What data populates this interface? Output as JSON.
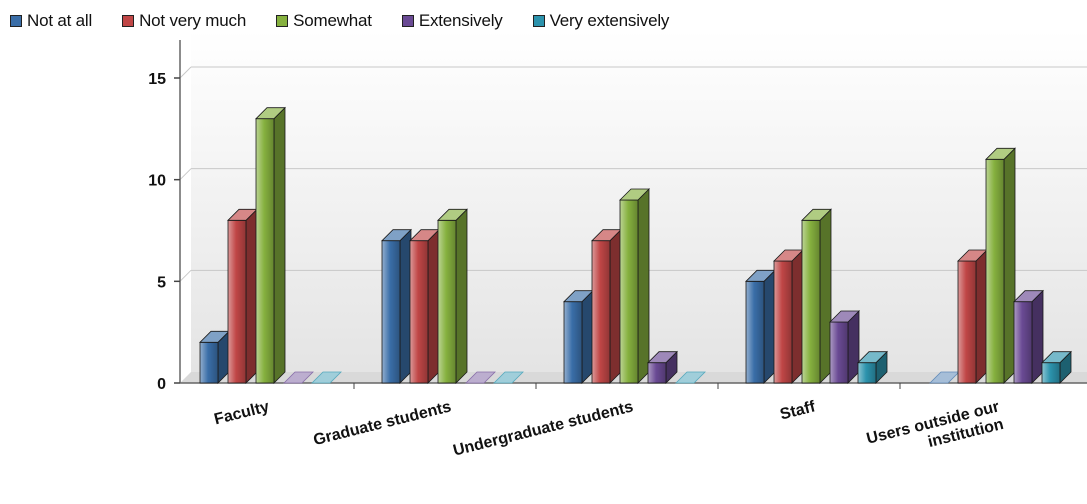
{
  "chart_data": {
    "type": "bar",
    "categories": [
      [
        "Faculty"
      ],
      [
        "Graduate students"
      ],
      [
        "Undergraduate students"
      ],
      [
        "Staff"
      ],
      [
        "Users outside our",
        "institution"
      ]
    ],
    "series": [
      {
        "name": "Not at all",
        "color": "#3a6ea8",
        "values": [
          2,
          7,
          4,
          5,
          0
        ]
      },
      {
        "name": "Not very much",
        "color": "#c04646",
        "values": [
          8,
          7,
          7,
          6,
          6
        ]
      },
      {
        "name": "Somewhat",
        "color": "#86b13f",
        "values": [
          13,
          8,
          9,
          8,
          11
        ]
      },
      {
        "name": "Extensively",
        "color": "#6a4a94",
        "values": [
          0,
          0,
          1,
          3,
          4
        ]
      },
      {
        "name": "Very extensively",
        "color": "#2c93ad",
        "values": [
          0,
          0,
          0,
          1,
          1
        ]
      }
    ],
    "yticks": [
      0,
      5,
      10,
      15
    ],
    "ylim": [
      0,
      15
    ],
    "grid": true,
    "legend_position": "top"
  }
}
